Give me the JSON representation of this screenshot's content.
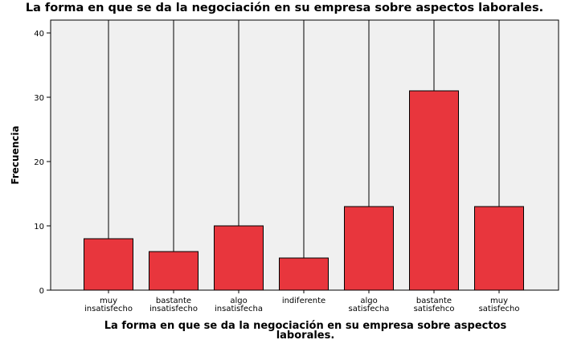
{
  "chart_data": {
    "type": "bar",
    "title": "La forma en que se da la negociación en su empresa sobre aspectos laborales.",
    "xlabel": [
      "La forma en que se da la negociación en su empresa sobre aspectos",
      "laborales."
    ],
    "ylabel": "Frecuencia",
    "categories": [
      [
        "muy",
        "insatisfecho"
      ],
      [
        "bastante",
        "insatisfecho"
      ],
      [
        "algo",
        "insatisfecha"
      ],
      [
        "indiferente"
      ],
      [
        "algo",
        "satisfecha"
      ],
      [
        "bastante",
        "satisfehco"
      ],
      [
        "muy",
        "satisfecho"
      ]
    ],
    "values": [
      8,
      6,
      10,
      5,
      13,
      31,
      13
    ],
    "ylim": [
      0,
      42
    ],
    "yticks": [
      0,
      10,
      20,
      30,
      40
    ],
    "grid": false,
    "colors": {
      "bar": "#e8363d",
      "plot_bg": "#f0f0f0",
      "axis": "#000000"
    }
  }
}
